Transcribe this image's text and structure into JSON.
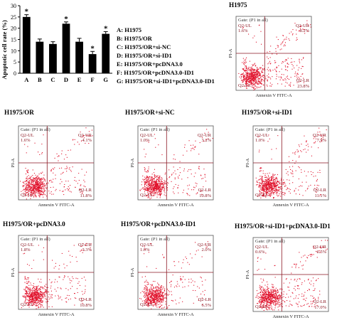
{
  "chart_data": [
    {
      "type": "bar",
      "ylabel": "Apoptotic cell rate (%)",
      "categories": [
        "A",
        "B",
        "C",
        "D",
        "E",
        "F",
        "G"
      ],
      "values": [
        25,
        14,
        13,
        22,
        14,
        8.5,
        17.5
      ],
      "errors": [
        1.0,
        1.2,
        1.0,
        0.8,
        1.5,
        1.2,
        1.0
      ],
      "significance": [
        "*",
        "",
        "",
        "*",
        "",
        "*",
        "*"
      ],
      "ylim": [
        0,
        30
      ],
      "yticks": [
        "0",
        "5",
        "10",
        "15",
        "20",
        "25",
        "30"
      ],
      "bar_color": "#000000",
      "legend": [
        "A: H1975",
        "B: H1975/OR",
        "C: H1975/OR+si-NC",
        "D: H1975/OR+si-ID1",
        "E: H1975/OR+pcDNA3.0",
        "F: H1975/OR+pcDNA3.0-ID1",
        "G: H1975/OR+si-ID1+pcDNA3.0-ID1"
      ]
    },
    {
      "type": "scatter",
      "panels": [
        {
          "title": "H1975",
          "gate": "Gate: (P1 in all)",
          "ul": "Q2-UL",
          "ul_val": "1.6%",
          "ur": "Q2-UR",
          "ur_val": "8.2%",
          "ll": "Q2-LL",
          "ll_val": "",
          "lr": "Q2-LR",
          "lr_val": "23.8%",
          "xlabel": "Annexin V FITC-A",
          "ylabel": "PI-A"
        },
        {
          "title": "H1975/OR",
          "gate": "Gate: (P1 in all)",
          "ul": "Q2-UL",
          "ul_val": "1.6%",
          "ur": "Q2-UR",
          "ur_val": "4.1%",
          "ll": "Q2-LL",
          "ll_val": "",
          "lr": "Q2-LR",
          "lr_val": "11.8%",
          "xlabel": "Annexin V FITC-A",
          "ylabel": "PI-A"
        },
        {
          "title": "H1975/OR+si-NC",
          "gate": "Gate: (P1 in all)",
          "ul": "Q2-UL",
          "ul_val": "1.0%",
          "ur": "Q2-UR",
          "ur_val": "3.2%",
          "ll": "Q2-LL",
          "ll_val": "",
          "lr": "Q2-LR",
          "lr_val": "10.8%",
          "xlabel": "Annexin V FITC-A",
          "ylabel": "PI-A"
        },
        {
          "title": "H1975/OR+si-ID1",
          "gate": "Gate: (P1 in all)",
          "ul": "Q2-UL",
          "ul_val": "1.0%",
          "ur": "Q2-UR",
          "ur_val": "7.9%",
          "ll": "Q2-LL",
          "ll_val": "",
          "lr": "Q2-LR",
          "lr_val": "11.1%",
          "xlabel": "Annexin V FITC-A",
          "ylabel": "PI-A"
        },
        {
          "title": "H1975/OR+pcDNA3.0",
          "gate": "Gate: (P1 in all)",
          "ul": "Q2-UL",
          "ul_val": "1.8%",
          "ur": "Q2-UR",
          "ur_val": "3.3%",
          "ll": "Q2-LL",
          "ll_val": "",
          "lr": "Q2-LR",
          "lr_val": "10.8%",
          "xlabel": "Annexin V FITC-A",
          "ylabel": "PI-A"
        },
        {
          "title": "H1975/OR+pcDNA3.0-ID1",
          "gate": "Gate: (P1 in all)",
          "ul": "Q2-UL",
          "ul_val": "1.0%",
          "ur": "Q2-UR",
          "ur_val": "2.0%",
          "ll": "Q2-LL",
          "ll_val": "",
          "lr": "Q2-LR",
          "lr_val": "6.5%",
          "xlabel": "Annexin V FITC-A",
          "ylabel": "PI-A"
        },
        {
          "title": "H1975/OR+si-ID1+pcDNA3.0-ID1",
          "gate": "Gate: (P1 in all)",
          "ul": "Q2-UL",
          "ul_val": "0.6%",
          "ur": "Q2-UR",
          "ur_val": "6.5%",
          "ll": "Q2-LL",
          "ll_val": "",
          "lr": "Q2-LR",
          "lr_val": "17.0%",
          "xlabel": "Annexin V FITC-A",
          "ylabel": "PI-A"
        }
      ],
      "point_color": "#e0102a",
      "gate_line_color": "#8a1520"
    }
  ]
}
